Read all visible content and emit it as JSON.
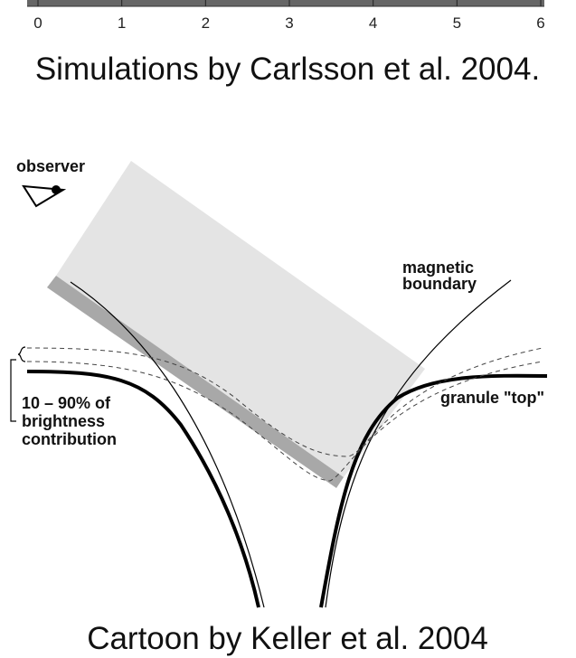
{
  "scale": {
    "ticks": [
      0,
      1,
      2,
      3,
      4,
      5,
      6
    ],
    "caption": "Simulations by Carlsson et al. 2004."
  },
  "diagram": {
    "observer": "observer",
    "magnetic_boundary": [
      "magnetic",
      "boundary"
    ],
    "granule_top": "granule \"top\"",
    "brightness": [
      "10 – 90% of",
      "brightness",
      "contribution"
    ],
    "caption": "Cartoon by Keller et al. 2004"
  }
}
